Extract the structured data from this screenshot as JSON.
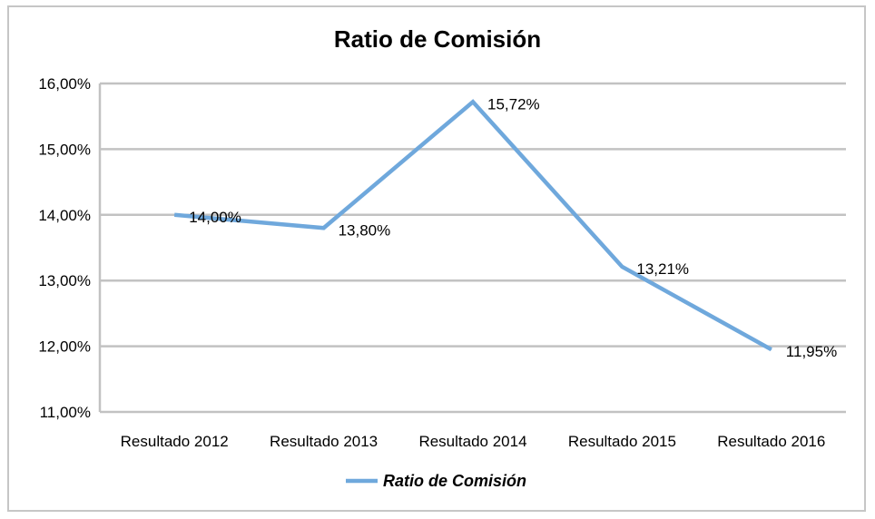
{
  "chart_data": {
    "type": "line",
    "title": "Ratio de Comisión",
    "categories": [
      "Resultado 2012",
      "Resultado 2013",
      "Resultado 2014",
      "Resultado 2015",
      "Resultado 2016"
    ],
    "series": [
      {
        "name": "Ratio de Comisión",
        "values": [
          14.0,
          13.8,
          15.72,
          13.21,
          11.95
        ],
        "data_labels": [
          "14,00%",
          "13,80%",
          "15,72%",
          "13,21%",
          "11,95%"
        ],
        "color": "#6fa8dc"
      }
    ],
    "ylim": [
      11,
      16
    ],
    "yticks": [
      11,
      12,
      13,
      14,
      15,
      16
    ],
    "ytick_labels": [
      "11,00%",
      "12,00%",
      "13,00%",
      "14,00%",
      "15,00%",
      "16,00%"
    ],
    "grid": true,
    "legend_position": "bottom"
  }
}
